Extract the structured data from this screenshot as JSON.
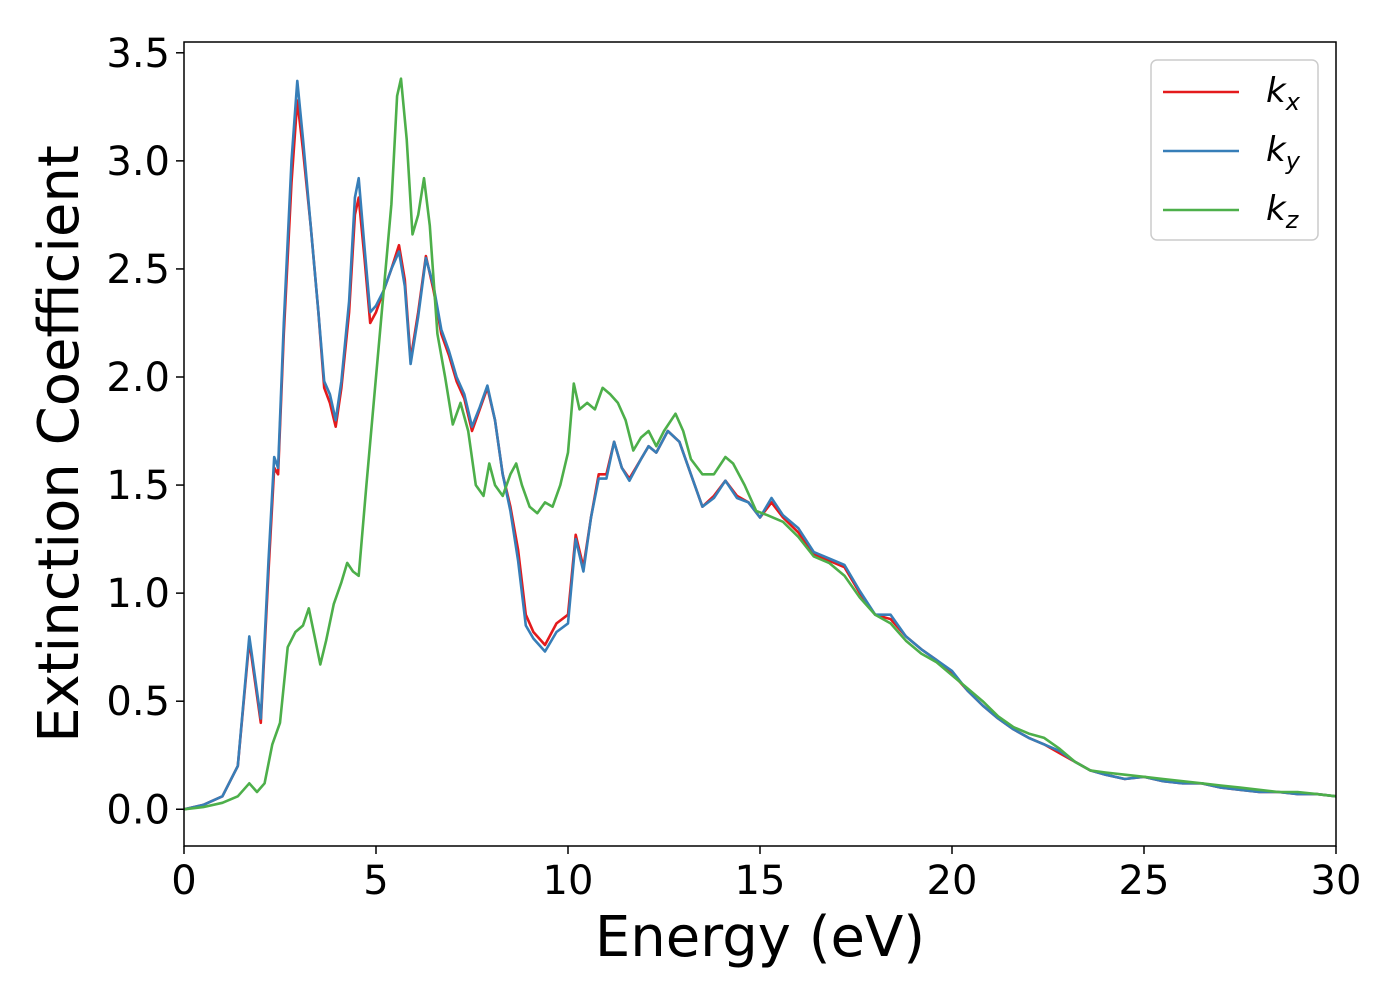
{
  "chart_data": {
    "type": "line",
    "title": "",
    "xlabel": "Energy (eV)",
    "ylabel": "Extinction Coefficient",
    "xlim": [
      0,
      30
    ],
    "ylim": [
      -0.17,
      3.55
    ],
    "grid": false,
    "legend_position": "top-right",
    "x_ticks": [
      "0",
      "5",
      "10",
      "15",
      "20",
      "25",
      "30"
    ],
    "y_ticks": [
      "0.0",
      "0.5",
      "1.0",
      "1.5",
      "2.0",
      "2.5",
      "3.0",
      "3.5"
    ],
    "series": [
      {
        "name": "k",
        "subscript": "x",
        "color": "#e41a1c",
        "points": [
          [
            0,
            0
          ],
          [
            0.5,
            0.02
          ],
          [
            1.0,
            0.06
          ],
          [
            1.4,
            0.2
          ],
          [
            1.7,
            0.78
          ],
          [
            2.0,
            0.4
          ],
          [
            2.2,
            1.1
          ],
          [
            2.35,
            1.58
          ],
          [
            2.45,
            1.55
          ],
          [
            2.6,
            2.2
          ],
          [
            2.8,
            2.9
          ],
          [
            2.95,
            3.28
          ],
          [
            3.1,
            3.05
          ],
          [
            3.3,
            2.7
          ],
          [
            3.5,
            2.3
          ],
          [
            3.65,
            1.95
          ],
          [
            3.8,
            1.88
          ],
          [
            3.95,
            1.77
          ],
          [
            4.1,
            1.95
          ],
          [
            4.3,
            2.3
          ],
          [
            4.45,
            2.75
          ],
          [
            4.55,
            2.83
          ],
          [
            4.7,
            2.55
          ],
          [
            4.85,
            2.25
          ],
          [
            5.0,
            2.3
          ],
          [
            5.2,
            2.4
          ],
          [
            5.4,
            2.5
          ],
          [
            5.6,
            2.61
          ],
          [
            5.75,
            2.45
          ],
          [
            5.9,
            2.08
          ],
          [
            6.1,
            2.3
          ],
          [
            6.3,
            2.56
          ],
          [
            6.5,
            2.4
          ],
          [
            6.7,
            2.2
          ],
          [
            6.9,
            2.1
          ],
          [
            7.1,
            1.98
          ],
          [
            7.3,
            1.9
          ],
          [
            7.5,
            1.75
          ],
          [
            7.7,
            1.85
          ],
          [
            7.9,
            1.95
          ],
          [
            8.1,
            1.8
          ],
          [
            8.3,
            1.55
          ],
          [
            8.5,
            1.4
          ],
          [
            8.7,
            1.2
          ],
          [
            8.9,
            0.9
          ],
          [
            9.1,
            0.82
          ],
          [
            9.4,
            0.76
          ],
          [
            9.7,
            0.86
          ],
          [
            10.0,
            0.9
          ],
          [
            10.2,
            1.27
          ],
          [
            10.4,
            1.12
          ],
          [
            10.6,
            1.35
          ],
          [
            10.8,
            1.55
          ],
          [
            11.0,
            1.55
          ],
          [
            11.2,
            1.7
          ],
          [
            11.4,
            1.58
          ],
          [
            11.6,
            1.53
          ],
          [
            11.9,
            1.62
          ],
          [
            12.1,
            1.68
          ],
          [
            12.3,
            1.65
          ],
          [
            12.6,
            1.75
          ],
          [
            12.9,
            1.7
          ],
          [
            13.2,
            1.55
          ],
          [
            13.5,
            1.4
          ],
          [
            13.8,
            1.45
          ],
          [
            14.1,
            1.52
          ],
          [
            14.4,
            1.45
          ],
          [
            14.7,
            1.42
          ],
          [
            15.0,
            1.35
          ],
          [
            15.3,
            1.42
          ],
          [
            15.6,
            1.35
          ],
          [
            16.0,
            1.28
          ],
          [
            16.4,
            1.18
          ],
          [
            16.8,
            1.15
          ],
          [
            17.2,
            1.12
          ],
          [
            17.6,
            1.0
          ],
          [
            18.0,
            0.9
          ],
          [
            18.4,
            0.88
          ],
          [
            18.8,
            0.8
          ],
          [
            19.2,
            0.74
          ],
          [
            19.6,
            0.69
          ],
          [
            20.0,
            0.63
          ],
          [
            20.4,
            0.55
          ],
          [
            20.8,
            0.48
          ],
          [
            21.2,
            0.42
          ],
          [
            21.6,
            0.37
          ],
          [
            22.0,
            0.33
          ],
          [
            22.4,
            0.3
          ],
          [
            22.8,
            0.26
          ],
          [
            23.2,
            0.22
          ],
          [
            23.6,
            0.18
          ],
          [
            24.0,
            0.16
          ],
          [
            24.5,
            0.14
          ],
          [
            25.0,
            0.15
          ],
          [
            25.5,
            0.13
          ],
          [
            26.0,
            0.12
          ],
          [
            26.5,
            0.12
          ],
          [
            27.0,
            0.1
          ],
          [
            27.5,
            0.09
          ],
          [
            28.0,
            0.08
          ],
          [
            28.5,
            0.08
          ],
          [
            29.0,
            0.07
          ],
          [
            29.5,
            0.07
          ],
          [
            30.0,
            0.06
          ]
        ]
      },
      {
        "name": "k",
        "subscript": "y",
        "color": "#377eb8",
        "points": [
          [
            0,
            0
          ],
          [
            0.5,
            0.02
          ],
          [
            1.0,
            0.06
          ],
          [
            1.4,
            0.2
          ],
          [
            1.7,
            0.8
          ],
          [
            2.0,
            0.42
          ],
          [
            2.2,
            1.15
          ],
          [
            2.35,
            1.63
          ],
          [
            2.45,
            1.58
          ],
          [
            2.6,
            2.25
          ],
          [
            2.8,
            3.0
          ],
          [
            2.95,
            3.37
          ],
          [
            3.1,
            3.1
          ],
          [
            3.3,
            2.7
          ],
          [
            3.5,
            2.3
          ],
          [
            3.65,
            1.98
          ],
          [
            3.8,
            1.92
          ],
          [
            3.95,
            1.8
          ],
          [
            4.1,
            1.98
          ],
          [
            4.3,
            2.35
          ],
          [
            4.45,
            2.83
          ],
          [
            4.55,
            2.92
          ],
          [
            4.7,
            2.6
          ],
          [
            4.85,
            2.3
          ],
          [
            5.0,
            2.33
          ],
          [
            5.2,
            2.4
          ],
          [
            5.4,
            2.5
          ],
          [
            5.6,
            2.58
          ],
          [
            5.75,
            2.42
          ],
          [
            5.9,
            2.06
          ],
          [
            6.1,
            2.28
          ],
          [
            6.3,
            2.55
          ],
          [
            6.5,
            2.42
          ],
          [
            6.7,
            2.22
          ],
          [
            6.9,
            2.12
          ],
          [
            7.1,
            2.0
          ],
          [
            7.3,
            1.92
          ],
          [
            7.5,
            1.77
          ],
          [
            7.7,
            1.86
          ],
          [
            7.9,
            1.96
          ],
          [
            8.1,
            1.8
          ],
          [
            8.3,
            1.55
          ],
          [
            8.5,
            1.38
          ],
          [
            8.7,
            1.15
          ],
          [
            8.9,
            0.85
          ],
          [
            9.1,
            0.79
          ],
          [
            9.4,
            0.73
          ],
          [
            9.7,
            0.82
          ],
          [
            10.0,
            0.86
          ],
          [
            10.2,
            1.25
          ],
          [
            10.4,
            1.1
          ],
          [
            10.6,
            1.35
          ],
          [
            10.8,
            1.53
          ],
          [
            11.0,
            1.53
          ],
          [
            11.2,
            1.7
          ],
          [
            11.4,
            1.58
          ],
          [
            11.6,
            1.52
          ],
          [
            11.9,
            1.62
          ],
          [
            12.1,
            1.68
          ],
          [
            12.3,
            1.65
          ],
          [
            12.6,
            1.75
          ],
          [
            12.9,
            1.7
          ],
          [
            13.2,
            1.55
          ],
          [
            13.5,
            1.4
          ],
          [
            13.8,
            1.44
          ],
          [
            14.1,
            1.52
          ],
          [
            14.4,
            1.44
          ],
          [
            14.7,
            1.42
          ],
          [
            15.0,
            1.35
          ],
          [
            15.3,
            1.44
          ],
          [
            15.6,
            1.36
          ],
          [
            16.0,
            1.3
          ],
          [
            16.4,
            1.19
          ],
          [
            16.8,
            1.16
          ],
          [
            17.2,
            1.13
          ],
          [
            17.6,
            1.01
          ],
          [
            18.0,
            0.9
          ],
          [
            18.4,
            0.9
          ],
          [
            18.8,
            0.8
          ],
          [
            19.2,
            0.74
          ],
          [
            19.6,
            0.69
          ],
          [
            20.0,
            0.64
          ],
          [
            20.4,
            0.55
          ],
          [
            20.8,
            0.48
          ],
          [
            21.2,
            0.42
          ],
          [
            21.6,
            0.37
          ],
          [
            22.0,
            0.33
          ],
          [
            22.4,
            0.3
          ],
          [
            22.8,
            0.27
          ],
          [
            23.2,
            0.22
          ],
          [
            23.6,
            0.18
          ],
          [
            24.0,
            0.16
          ],
          [
            24.5,
            0.14
          ],
          [
            25.0,
            0.15
          ],
          [
            25.5,
            0.13
          ],
          [
            26.0,
            0.12
          ],
          [
            26.5,
            0.12
          ],
          [
            27.0,
            0.1
          ],
          [
            27.5,
            0.09
          ],
          [
            28.0,
            0.08
          ],
          [
            28.5,
            0.08
          ],
          [
            29.0,
            0.07
          ],
          [
            29.5,
            0.07
          ],
          [
            30.0,
            0.06
          ]
        ]
      },
      {
        "name": "k",
        "subscript": "z",
        "color": "#4daf4a",
        "points": [
          [
            0,
            0
          ],
          [
            0.5,
            0.01
          ],
          [
            1.0,
            0.03
          ],
          [
            1.4,
            0.06
          ],
          [
            1.7,
            0.12
          ],
          [
            1.9,
            0.08
          ],
          [
            2.1,
            0.12
          ],
          [
            2.3,
            0.3
          ],
          [
            2.5,
            0.4
          ],
          [
            2.7,
            0.75
          ],
          [
            2.9,
            0.82
          ],
          [
            3.1,
            0.85
          ],
          [
            3.25,
            0.93
          ],
          [
            3.4,
            0.8
          ],
          [
            3.55,
            0.67
          ],
          [
            3.7,
            0.78
          ],
          [
            3.9,
            0.95
          ],
          [
            4.1,
            1.05
          ],
          [
            4.25,
            1.14
          ],
          [
            4.4,
            1.1
          ],
          [
            4.55,
            1.08
          ],
          [
            4.75,
            1.5
          ],
          [
            5.0,
            2.0
          ],
          [
            5.2,
            2.4
          ],
          [
            5.4,
            2.8
          ],
          [
            5.55,
            3.3
          ],
          [
            5.65,
            3.38
          ],
          [
            5.8,
            3.1
          ],
          [
            5.95,
            2.66
          ],
          [
            6.1,
            2.75
          ],
          [
            6.25,
            2.92
          ],
          [
            6.4,
            2.7
          ],
          [
            6.6,
            2.2
          ],
          [
            6.8,
            2.0
          ],
          [
            7.0,
            1.78
          ],
          [
            7.2,
            1.88
          ],
          [
            7.4,
            1.75
          ],
          [
            7.6,
            1.5
          ],
          [
            7.8,
            1.45
          ],
          [
            7.95,
            1.6
          ],
          [
            8.1,
            1.5
          ],
          [
            8.3,
            1.45
          ],
          [
            8.5,
            1.55
          ],
          [
            8.65,
            1.6
          ],
          [
            8.8,
            1.5
          ],
          [
            9.0,
            1.4
          ],
          [
            9.2,
            1.37
          ],
          [
            9.4,
            1.42
          ],
          [
            9.6,
            1.4
          ],
          [
            9.8,
            1.5
          ],
          [
            10.0,
            1.65
          ],
          [
            10.15,
            1.97
          ],
          [
            10.3,
            1.85
          ],
          [
            10.5,
            1.88
          ],
          [
            10.7,
            1.85
          ],
          [
            10.9,
            1.95
          ],
          [
            11.1,
            1.92
          ],
          [
            11.3,
            1.88
          ],
          [
            11.5,
            1.8
          ],
          [
            11.7,
            1.66
          ],
          [
            11.9,
            1.72
          ],
          [
            12.1,
            1.75
          ],
          [
            12.3,
            1.68
          ],
          [
            12.5,
            1.75
          ],
          [
            12.8,
            1.83
          ],
          [
            13.0,
            1.75
          ],
          [
            13.2,
            1.62
          ],
          [
            13.5,
            1.55
          ],
          [
            13.8,
            1.55
          ],
          [
            14.1,
            1.63
          ],
          [
            14.3,
            1.6
          ],
          [
            14.6,
            1.5
          ],
          [
            14.9,
            1.38
          ],
          [
            15.2,
            1.36
          ],
          [
            15.6,
            1.33
          ],
          [
            16.0,
            1.26
          ],
          [
            16.4,
            1.17
          ],
          [
            16.8,
            1.14
          ],
          [
            17.2,
            1.08
          ],
          [
            17.6,
            0.98
          ],
          [
            18.0,
            0.9
          ],
          [
            18.4,
            0.86
          ],
          [
            18.8,
            0.78
          ],
          [
            19.2,
            0.72
          ],
          [
            19.6,
            0.68
          ],
          [
            20.0,
            0.62
          ],
          [
            20.4,
            0.56
          ],
          [
            20.8,
            0.5
          ],
          [
            21.2,
            0.43
          ],
          [
            21.6,
            0.38
          ],
          [
            22.0,
            0.35
          ],
          [
            22.4,
            0.33
          ],
          [
            22.8,
            0.28
          ],
          [
            23.2,
            0.22
          ],
          [
            23.6,
            0.18
          ],
          [
            24.0,
            0.17
          ],
          [
            24.5,
            0.16
          ],
          [
            25.0,
            0.15
          ],
          [
            25.5,
            0.14
          ],
          [
            26.0,
            0.13
          ],
          [
            26.5,
            0.12
          ],
          [
            27.0,
            0.11
          ],
          [
            27.5,
            0.1
          ],
          [
            28.0,
            0.09
          ],
          [
            28.5,
            0.08
          ],
          [
            29.0,
            0.08
          ],
          [
            29.5,
            0.07
          ],
          [
            30.0,
            0.06
          ]
        ]
      }
    ]
  }
}
